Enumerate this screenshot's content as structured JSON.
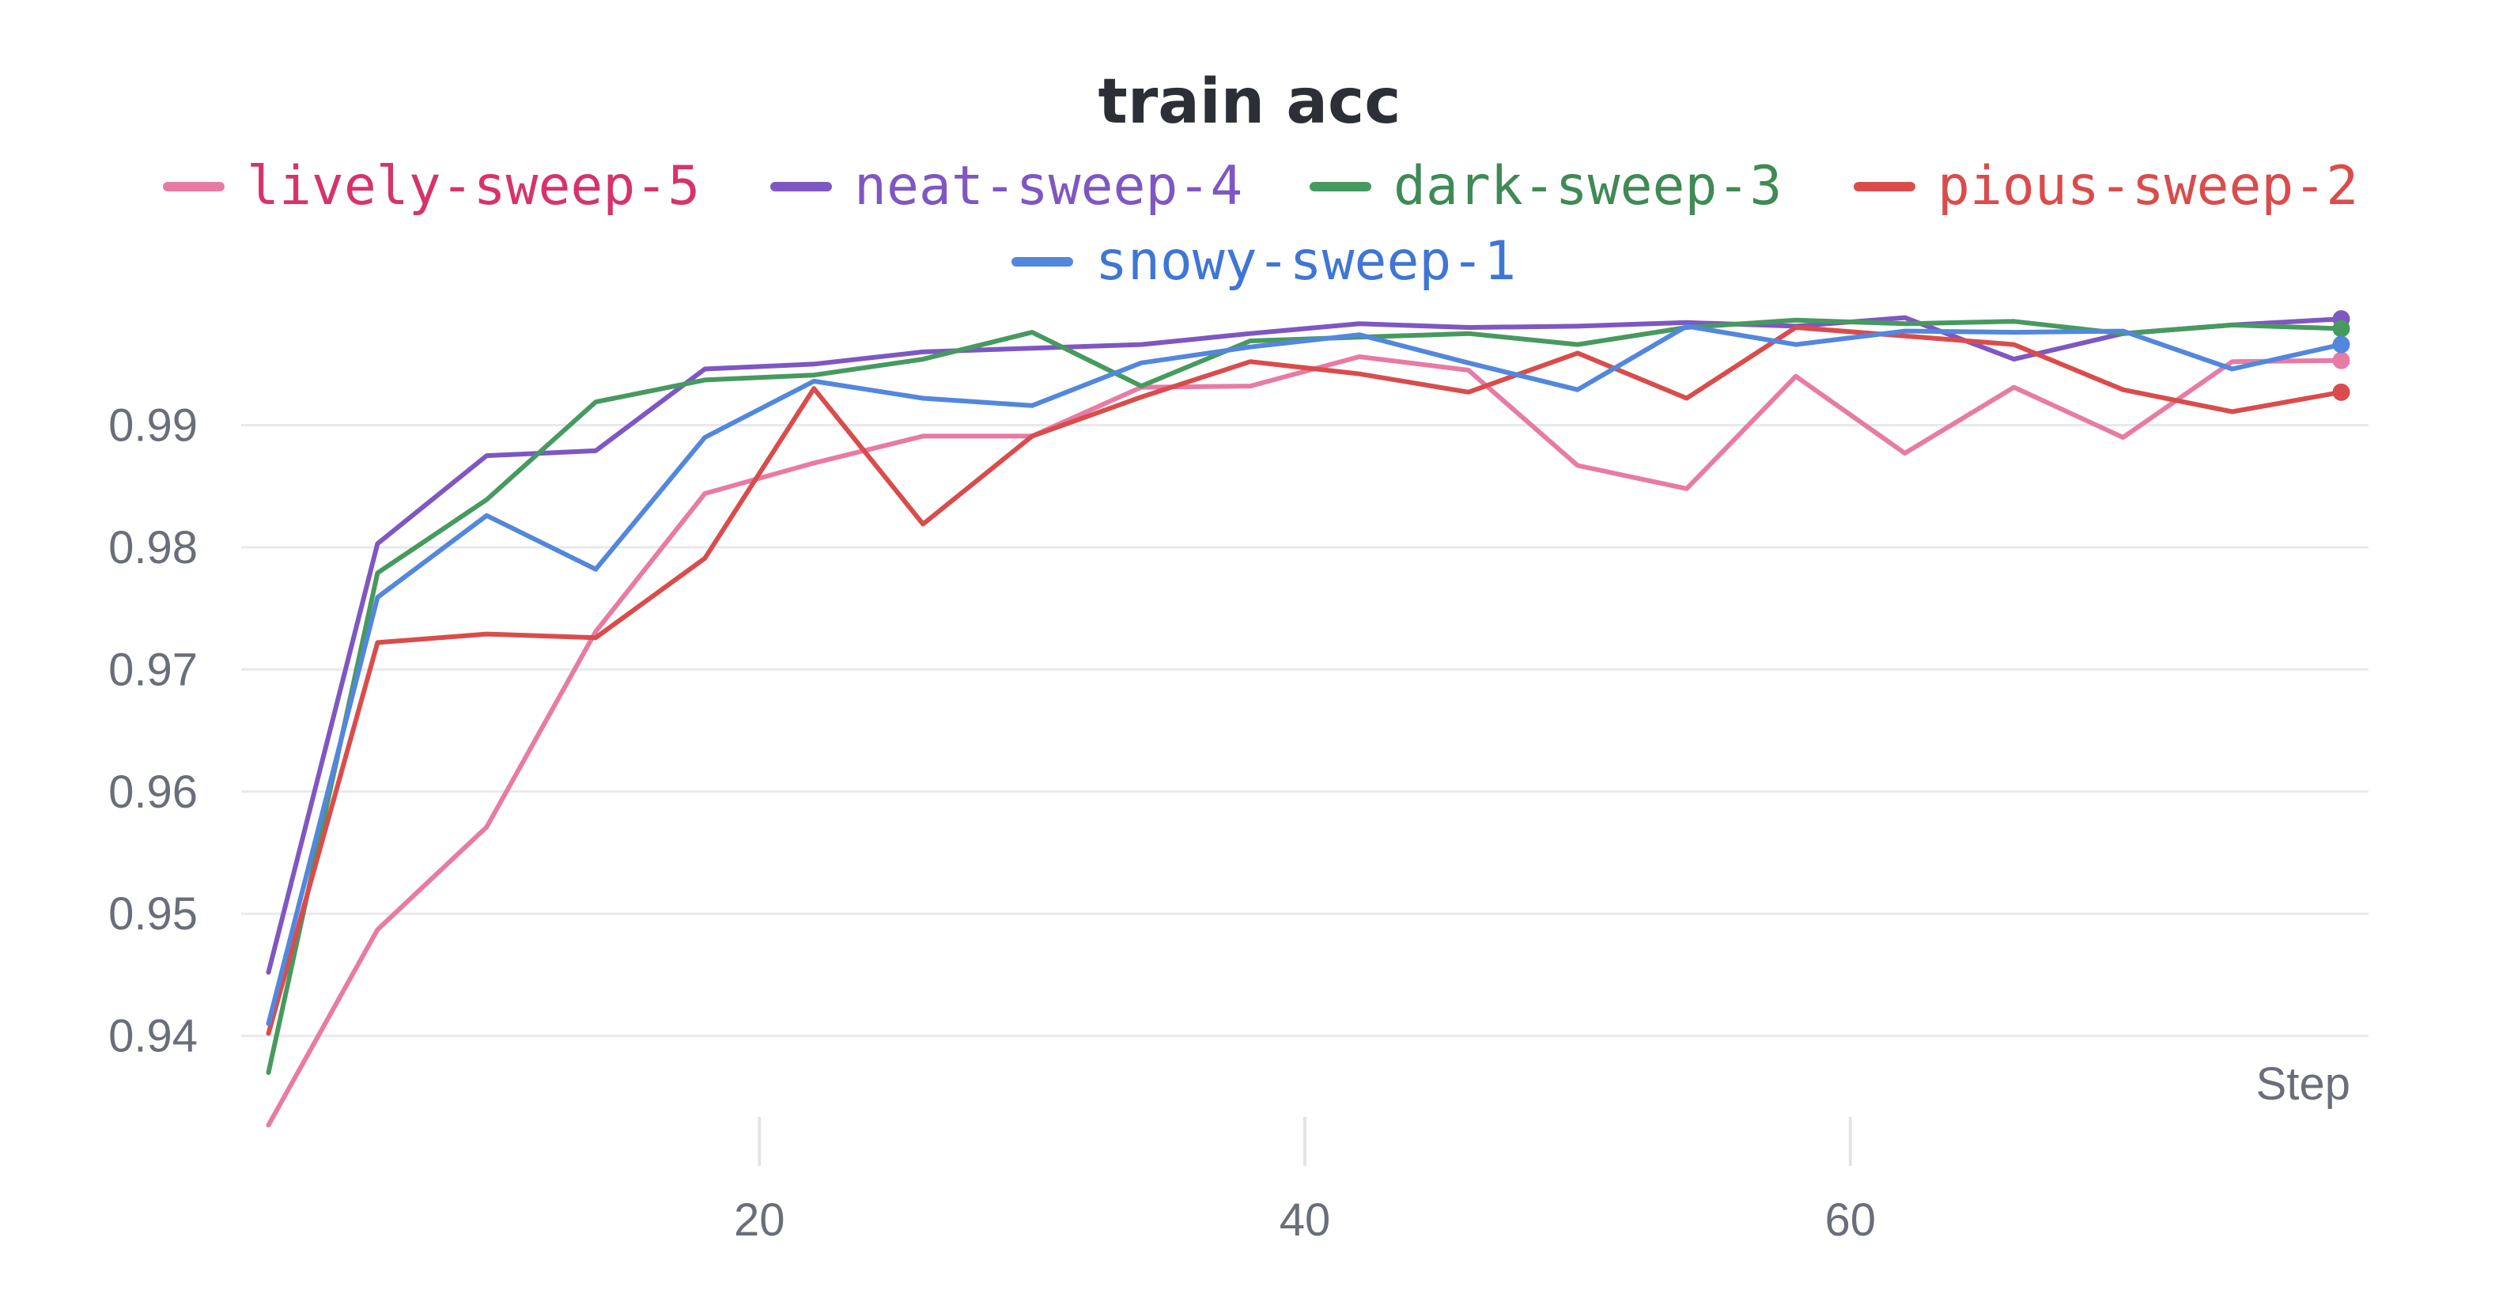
{
  "chart_data": {
    "type": "line",
    "title": "train acc",
    "xlabel": "Step",
    "ylabel": "",
    "xlim": [
      1,
      79
    ],
    "ylim": [
      0.9335,
      1.0002
    ],
    "x_ticks": [
      20,
      40,
      60
    ],
    "x_tick_labels": [
      "20",
      "40",
      "60"
    ],
    "y_ticks": [
      0.94,
      0.95,
      0.96,
      0.97,
      0.98,
      0.99
    ],
    "y_tick_labels": [
      "0.94",
      "0.95",
      "0.96",
      "0.97",
      "0.98",
      "0.99"
    ],
    "grid": "horizontal",
    "legend": "top",
    "x": [
      2,
      6,
      10,
      14,
      18,
      22,
      26,
      30,
      34,
      38,
      42,
      46,
      50,
      54,
      58,
      62,
      66,
      70,
      74,
      78
    ],
    "series": [
      {
        "name": "lively-sweep-5",
        "color": "#e87ba4",
        "label_color": "#d6336c",
        "values": [
          0.9327,
          0.9487,
          0.9571,
          0.9731,
          0.9844,
          0.9869,
          0.9891,
          0.9891,
          0.9931,
          0.9932,
          0.9956,
          0.9945,
          0.9867,
          0.9848,
          0.994,
          0.9877,
          0.9931,
          0.989,
          0.9952,
          0.9953
        ]
      },
      {
        "name": "neat-sweep-4",
        "color": "#7e57c2",
        "label_color": "#7e57c2",
        "values": [
          0.9452,
          0.9803,
          0.9875,
          0.9879,
          0.9946,
          0.995,
          0.996,
          0.9963,
          0.9966,
          0.9975,
          0.9983,
          0.998,
          0.9981,
          0.9984,
          0.9981,
          0.9988,
          0.9954,
          0.9975,
          0.9982,
          0.9987
        ]
      },
      {
        "name": "dark-sweep-3",
        "color": "#479a5f",
        "label_color": "#3f8a55",
        "values": [
          0.937,
          0.9779,
          0.9839,
          0.9919,
          0.9937,
          0.9941,
          0.9954,
          0.9976,
          0.9932,
          0.9969,
          0.9972,
          0.9975,
          0.9966,
          0.998,
          0.9986,
          0.9983,
          0.9985,
          0.9975,
          0.9982,
          0.9979
        ]
      },
      {
        "name": "pious-sweep-2",
        "color": "#da4c4c",
        "label_color": "#da4c4c",
        "values": [
          0.9402,
          0.9722,
          0.9729,
          0.9726,
          0.9791,
          0.993,
          0.9819,
          0.9891,
          0.9923,
          0.9952,
          0.9942,
          0.9927,
          0.9959,
          0.9922,
          0.998,
          0.9973,
          0.9966,
          0.9929,
          0.9911,
          0.9927
        ]
      },
      {
        "name": "snowy-sweep-1",
        "color": "#5387dd",
        "label_color": "#3f76d6",
        "values": [
          0.941,
          0.9759,
          0.9826,
          0.9782,
          0.989,
          0.9936,
          0.9922,
          0.9916,
          0.9951,
          0.9964,
          0.9974,
          0.9951,
          0.9929,
          0.9981,
          0.9966,
          0.9977,
          0.9976,
          0.9977,
          0.9946,
          0.9966
        ]
      }
    ]
  }
}
